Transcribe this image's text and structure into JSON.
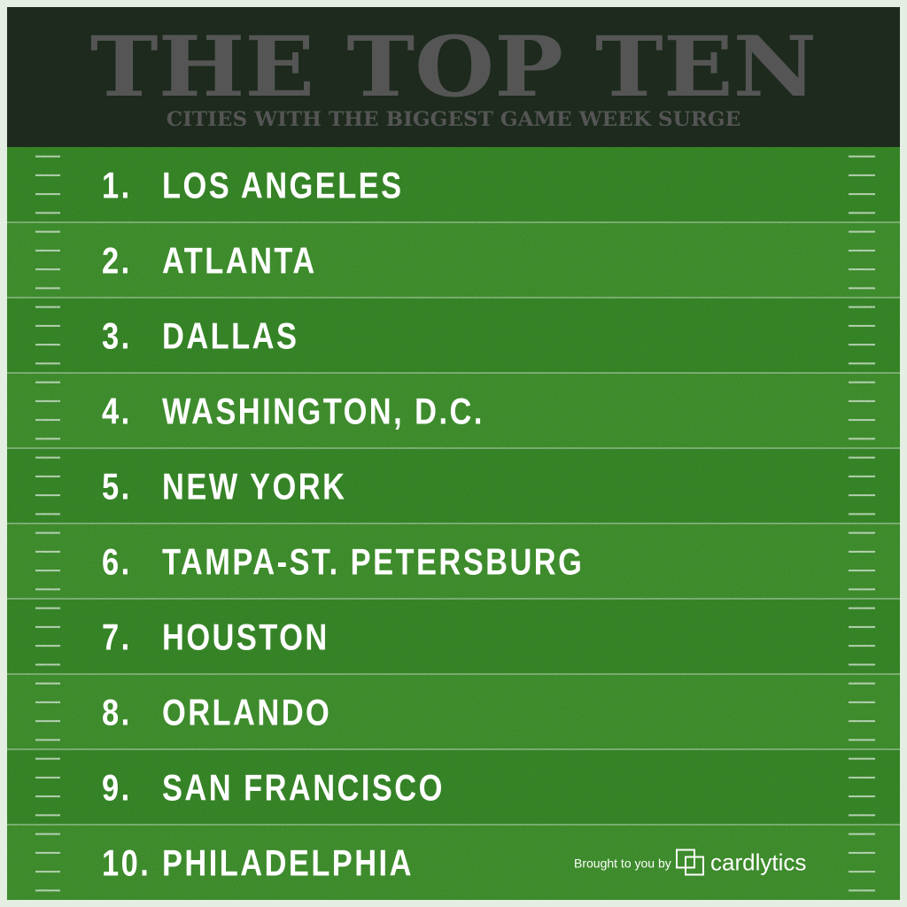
{
  "header": {
    "title": "THE TOP TEN",
    "subtitle": "CITIES WITH THE BIGGEST GAME WEEK SURGE"
  },
  "list": [
    {
      "rank": "1.",
      "city": "LOS ANGELES"
    },
    {
      "rank": "2.",
      "city": "ATLANTA"
    },
    {
      "rank": "3.",
      "city": "DALLAS"
    },
    {
      "rank": "4.",
      "city": "WASHINGTON, D.C."
    },
    {
      "rank": "5.",
      "city": "NEW YORK"
    },
    {
      "rank": "6.",
      "city": "TAMPA-ST. PETERSBURG"
    },
    {
      "rank": "7.",
      "city": "HOUSTON"
    },
    {
      "rank": "8.",
      "city": "ORLANDO"
    },
    {
      "rank": "9.",
      "city": "SAN FRANCISCO"
    },
    {
      "rank": "10.",
      "city": "PHILADELPHIA"
    }
  ],
  "footer": {
    "sponsor_prefix": "Brought to you by",
    "sponsor": "cardlytics"
  }
}
